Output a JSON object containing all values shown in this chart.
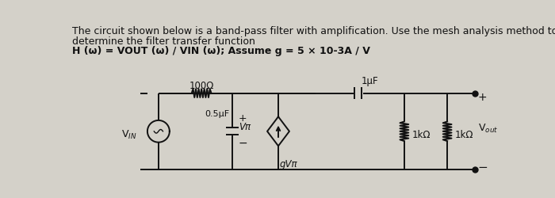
{
  "bg_color": "#d4d1c9",
  "text_lines": [
    "The circuit shown below is a band-pass filter with amplification. Use the mesh analysis method to",
    "determine the filter transfer function",
    "H (ω) = VOUT (ω) / VIN (ω); Assume g = 5 × 10-3A / V"
  ],
  "text_fontsize": 9.0,
  "text_color": "#111111",
  "fig_width": 7.0,
  "fig_height": 2.51,
  "dpi": 100,
  "circuit_color": "#111111",
  "lw": 1.4
}
